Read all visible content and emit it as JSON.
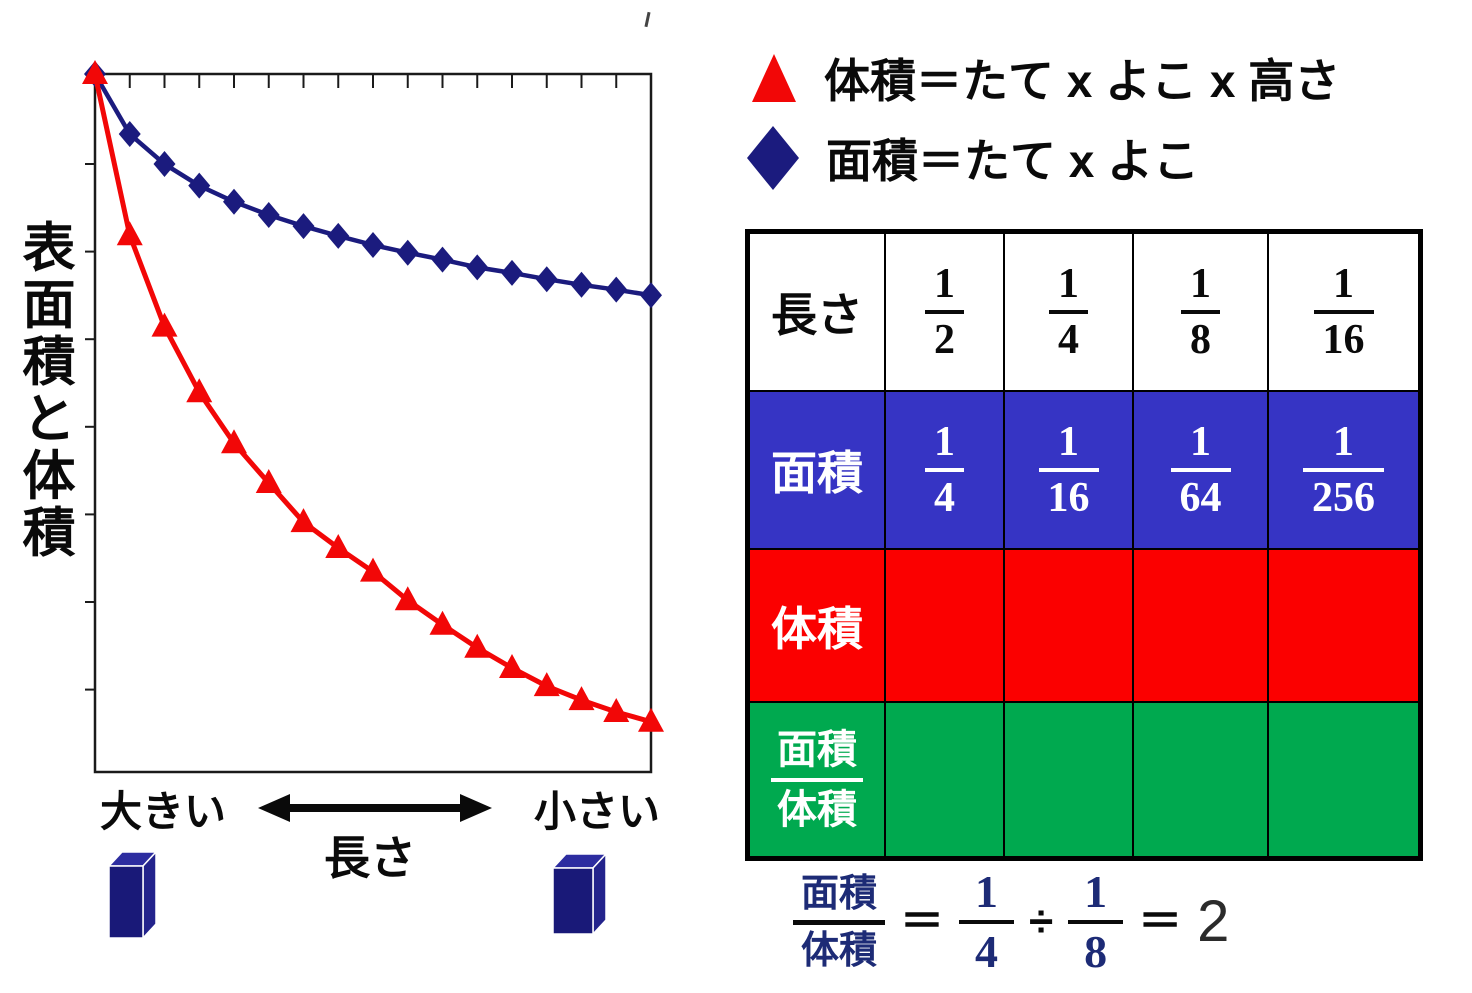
{
  "colors": {
    "navy_marker": "#1b1b7e",
    "red_marker": "#f20707",
    "table_blue": "#3634c4",
    "table_red": "#fb0000",
    "table_green": "#00a94f",
    "equation_navy": "#1d2b76",
    "ink": "#0a0a0a"
  },
  "chart": {
    "ylabel_chars": [
      "表",
      "面",
      "積",
      "と",
      "体",
      "積"
    ],
    "x_left": "大きい",
    "x_right": "小さい",
    "xlabel": "長さ"
  },
  "chart_data": {
    "type": "line",
    "title": "",
    "ylabel": "表面積と体積",
    "xlabel": "長さ",
    "x_axis": {
      "type": "qualitative",
      "left_label": "大きい",
      "right_label": "小さい",
      "note": "length decreases from left (big) to right (small); no numeric ticks"
    },
    "y_axis": {
      "type": "qualitative-unlabeled",
      "note": "both curves start at same maximum at top-left"
    },
    "n_points": 17,
    "grid": false,
    "legend_position": "top-right outside plot",
    "series": [
      {
        "name": "面積＝たて x よこ",
        "marker": "diamond",
        "color": "#1b1b7e",
        "y_frac_from_top": [
          0,
          0.086,
          0.129,
          0.16,
          0.183,
          0.202,
          0.218,
          0.232,
          0.245,
          0.256,
          0.266,
          0.277,
          0.285,
          0.294,
          0.302,
          0.309,
          0.317
        ]
      },
      {
        "name": "体積＝たて x よこ x 高さ",
        "marker": "triangle",
        "color": "#f20707",
        "y_frac_from_top": [
          0,
          0.231,
          0.362,
          0.456,
          0.529,
          0.586,
          0.642,
          0.679,
          0.713,
          0.754,
          0.789,
          0.822,
          0.851,
          0.877,
          0.897,
          0.914,
          0.928
        ]
      }
    ]
  },
  "legend": {
    "items": [
      {
        "marker": "triangle",
        "color": "#f20707",
        "label": "体積＝たて x よこ x 高さ"
      },
      {
        "marker": "diamond",
        "color": "#1b1b7e",
        "label": "面積＝たて x よこ"
      }
    ]
  },
  "table": {
    "rows": [
      {
        "label": "長さ",
        "bg": "#ffffff",
        "cells": [
          {
            "num": "1",
            "den": "2"
          },
          {
            "num": "1",
            "den": "4"
          },
          {
            "num": "1",
            "den": "8"
          },
          {
            "num": "1",
            "den": "16"
          }
        ]
      },
      {
        "label": "面積",
        "bg": "#3634c4",
        "cells": [
          {
            "num": "1",
            "den": "4"
          },
          {
            "num": "1",
            "den": "16"
          },
          {
            "num": "1",
            "den": "64"
          },
          {
            "num": "1",
            "den": "256"
          }
        ]
      },
      {
        "label": "体積",
        "bg": "#fb0000",
        "cells": [
          null,
          null,
          null,
          null
        ]
      },
      {
        "label_num": "面積",
        "label_den": "体積",
        "bg": "#00a94f",
        "cells": [
          null,
          null,
          null,
          null
        ]
      }
    ]
  },
  "equation": {
    "lhs_num": "面積",
    "lhs_den": "体積",
    "eq1": "＝",
    "f1_num": "1",
    "f1_den": "4",
    "div": "÷",
    "f2_num": "1",
    "f2_den": "8",
    "eq2": "＝",
    "result": "2"
  }
}
